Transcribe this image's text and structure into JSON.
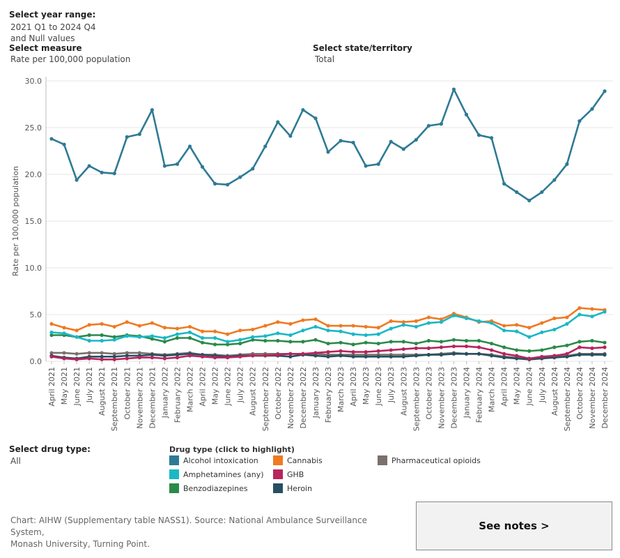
{
  "filters": {
    "year_range_label": "Select year range:",
    "year_range_value_line1": "2021 Q1 to 2024 Q4",
    "year_range_value_line2": "and Null values",
    "measure_label": "Select measure",
    "measure_value": "Rate per 100,000 population",
    "state_label": "Select state/territory",
    "state_value": "Total",
    "drug_type_label": "Select drug type:",
    "drug_type_value": "All"
  },
  "legend": {
    "title": "Drug type (click to highlight)"
  },
  "source_line1": "Chart: AIHW (Supplementary table NASS1). Source: National Ambulance Surveillance System,",
  "source_line2": "Monash University, Turning Point.",
  "notes_button": "See notes >",
  "chart_data": {
    "type": "line",
    "ylabel": "Rate per 100,000 population",
    "ylim": [
      0,
      30
    ],
    "yticks": [
      "0.0",
      "5.0",
      "10.0",
      "15.0",
      "20.0",
      "25.0",
      "30.0"
    ],
    "grid": true,
    "categories": [
      "April 2021",
      "May 2021",
      "June 2021",
      "July 2021",
      "August 2021",
      "September 2021",
      "October 2021",
      "November 2021",
      "December 2021",
      "January 2022",
      "February 2022",
      "March 2022",
      "April 2022",
      "May 2022",
      "June 2022",
      "July 2022",
      "August 2022",
      "September 2022",
      "October 2022",
      "November 2022",
      "December 2022",
      "January 2023",
      "February 2023",
      "March 2023",
      "April 2023",
      "May 2023",
      "June 2023",
      "July 2023",
      "August 2023",
      "September 2023",
      "October 2023",
      "November 2023",
      "December 2023",
      "January 2024",
      "February 2024",
      "March 2024",
      "April 2024",
      "May 2024",
      "June 2024",
      "July 2024",
      "August 2024",
      "September 2024",
      "October 2024",
      "November 2024",
      "December 2024"
    ],
    "series": [
      {
        "name": "Alcohol intoxication",
        "color": "#2e7a94",
        "values": [
          23.8,
          23.2,
          19.4,
          20.9,
          20.2,
          20.1,
          24.0,
          24.3,
          26.9,
          20.9,
          21.1,
          23.0,
          20.8,
          19.0,
          18.9,
          19.7,
          20.6,
          23.0,
          25.6,
          24.1,
          26.9,
          26.0,
          22.4,
          23.6,
          23.4,
          20.9,
          21.1,
          23.5,
          22.7,
          23.7,
          25.2,
          25.4,
          29.1,
          26.4,
          24.2,
          23.9,
          19.0,
          18.1,
          17.2,
          18.1,
          19.4,
          21.1,
          25.7,
          27.0,
          28.9
        ]
      },
      {
        "name": "Amphetamines (any)",
        "color": "#1bb7c6",
        "values": [
          3.1,
          3.0,
          2.6,
          2.2,
          2.2,
          2.3,
          2.7,
          2.6,
          2.7,
          2.5,
          2.9,
          3.1,
          2.5,
          2.5,
          2.1,
          2.3,
          2.6,
          2.7,
          3.0,
          2.8,
          3.3,
          3.7,
          3.3,
          3.2,
          2.9,
          2.8,
          2.9,
          3.5,
          3.9,
          3.7,
          4.1,
          4.2,
          4.9,
          4.6,
          4.3,
          4.1,
          3.3,
          3.2,
          2.6,
          3.1,
          3.4,
          4.0,
          5.0,
          4.8,
          5.3
        ]
      },
      {
        "name": "Benzodiazepines",
        "color": "#2a8a49",
        "values": [
          2.8,
          2.8,
          2.6,
          2.8,
          2.8,
          2.6,
          2.8,
          2.7,
          2.4,
          2.1,
          2.5,
          2.5,
          2.0,
          1.8,
          1.8,
          1.9,
          2.3,
          2.2,
          2.2,
          2.1,
          2.1,
          2.3,
          1.9,
          2.0,
          1.8,
          2.0,
          1.9,
          2.1,
          2.1,
          1.9,
          2.2,
          2.1,
          2.3,
          2.2,
          2.2,
          1.9,
          1.5,
          1.2,
          1.1,
          1.2,
          1.5,
          1.7,
          2.1,
          2.2,
          2.0
        ]
      },
      {
        "name": "Cannabis",
        "color": "#ef7a22",
        "values": [
          4.0,
          3.6,
          3.3,
          3.9,
          4.0,
          3.7,
          4.2,
          3.8,
          4.1,
          3.6,
          3.5,
          3.7,
          3.2,
          3.2,
          2.9,
          3.3,
          3.4,
          3.8,
          4.2,
          4.0,
          4.4,
          4.5,
          3.8,
          3.8,
          3.8,
          3.7,
          3.6,
          4.3,
          4.2,
          4.3,
          4.7,
          4.5,
          5.1,
          4.7,
          4.2,
          4.3,
          3.8,
          3.9,
          3.6,
          4.1,
          4.6,
          4.7,
          5.7,
          5.6,
          5.5
        ]
      },
      {
        "name": "GHB",
        "color": "#b8245c",
        "values": [
          0.5,
          0.3,
          0.2,
          0.3,
          0.2,
          0.2,
          0.3,
          0.4,
          0.4,
          0.3,
          0.4,
          0.6,
          0.5,
          0.4,
          0.4,
          0.5,
          0.6,
          0.6,
          0.7,
          0.8,
          0.8,
          0.9,
          1.0,
          1.1,
          1.0,
          1.0,
          1.1,
          1.2,
          1.3,
          1.4,
          1.4,
          1.5,
          1.6,
          1.6,
          1.5,
          1.2,
          0.8,
          0.6,
          0.3,
          0.5,
          0.6,
          0.8,
          1.5,
          1.4,
          1.5
        ]
      },
      {
        "name": "Heroin",
        "color": "#264f63",
        "values": [
          0.6,
          0.4,
          0.3,
          0.5,
          0.5,
          0.5,
          0.6,
          0.6,
          0.7,
          0.6,
          0.7,
          0.8,
          0.7,
          0.6,
          0.5,
          0.6,
          0.6,
          0.6,
          0.6,
          0.5,
          0.7,
          0.6,
          0.5,
          0.6,
          0.5,
          0.5,
          0.5,
          0.5,
          0.5,
          0.6,
          0.7,
          0.7,
          0.8,
          0.8,
          0.8,
          0.6,
          0.4,
          0.3,
          0.2,
          0.3,
          0.4,
          0.5,
          0.7,
          0.7,
          0.7
        ]
      },
      {
        "name": "Pharmaceutical opioids",
        "color": "#7a706c",
        "values": [
          0.9,
          0.9,
          0.8,
          0.9,
          0.9,
          0.8,
          0.9,
          0.9,
          0.8,
          0.7,
          0.8,
          0.9,
          0.7,
          0.7,
          0.6,
          0.7,
          0.8,
          0.8,
          0.8,
          0.8,
          0.8,
          0.8,
          0.7,
          0.7,
          0.7,
          0.7,
          0.7,
          0.7,
          0.7,
          0.7,
          0.7,
          0.8,
          0.9,
          0.8,
          0.8,
          0.7,
          0.5,
          0.4,
          0.3,
          0.4,
          0.5,
          0.6,
          0.8,
          0.8,
          0.8
        ]
      }
    ]
  }
}
